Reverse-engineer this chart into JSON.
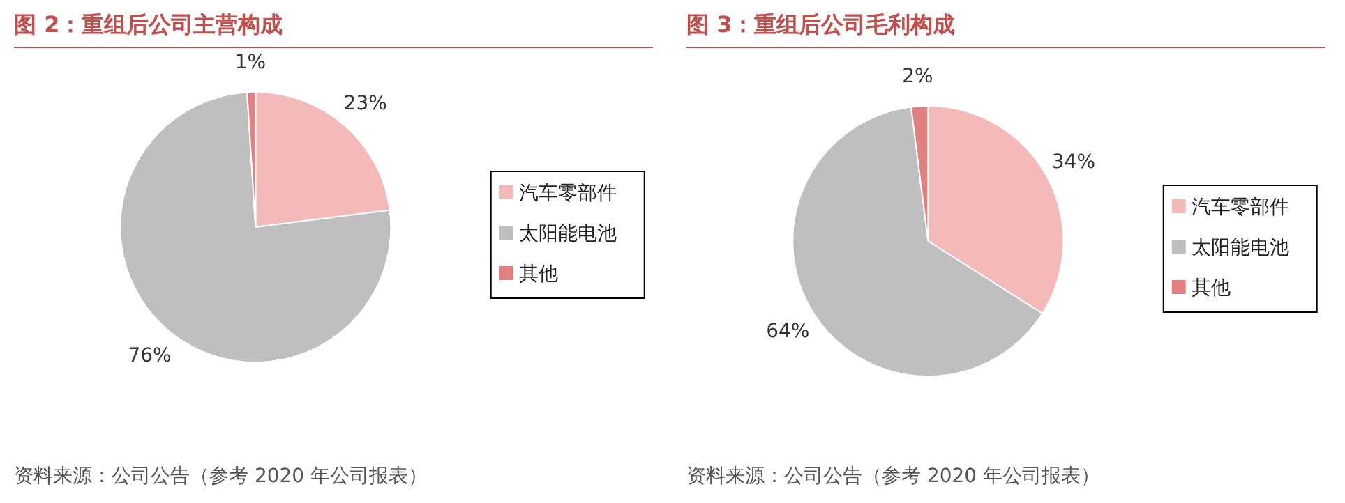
{
  "chart_data": [
    {
      "type": "pie",
      "title": "图 2：重组后公司主营构成",
      "categories": [
        "汽车零部件",
        "太阳能电池",
        "其他"
      ],
      "values": [
        23,
        76,
        1
      ],
      "colors": [
        "#f4b9b9",
        "#bfbfbf",
        "#e38080"
      ],
      "value_labels": [
        "23%",
        "76%",
        "1%"
      ],
      "legend": "right",
      "annotations": [
        "资料来源：公司公告（参考 2020 年公司报表）"
      ]
    },
    {
      "type": "pie",
      "title": "图 3：重组后公司毛利构成",
      "categories": [
        "汽车零部件",
        "太阳能电池",
        "其他"
      ],
      "values": [
        34,
        64,
        2
      ],
      "colors": [
        "#f4b9b9",
        "#bfbfbf",
        "#e38080"
      ],
      "value_labels": [
        "34%",
        "64%",
        "2%"
      ],
      "legend": "right",
      "annotations": [
        "资料来源：公司公告（参考 2020 年公司报表）"
      ]
    }
  ]
}
